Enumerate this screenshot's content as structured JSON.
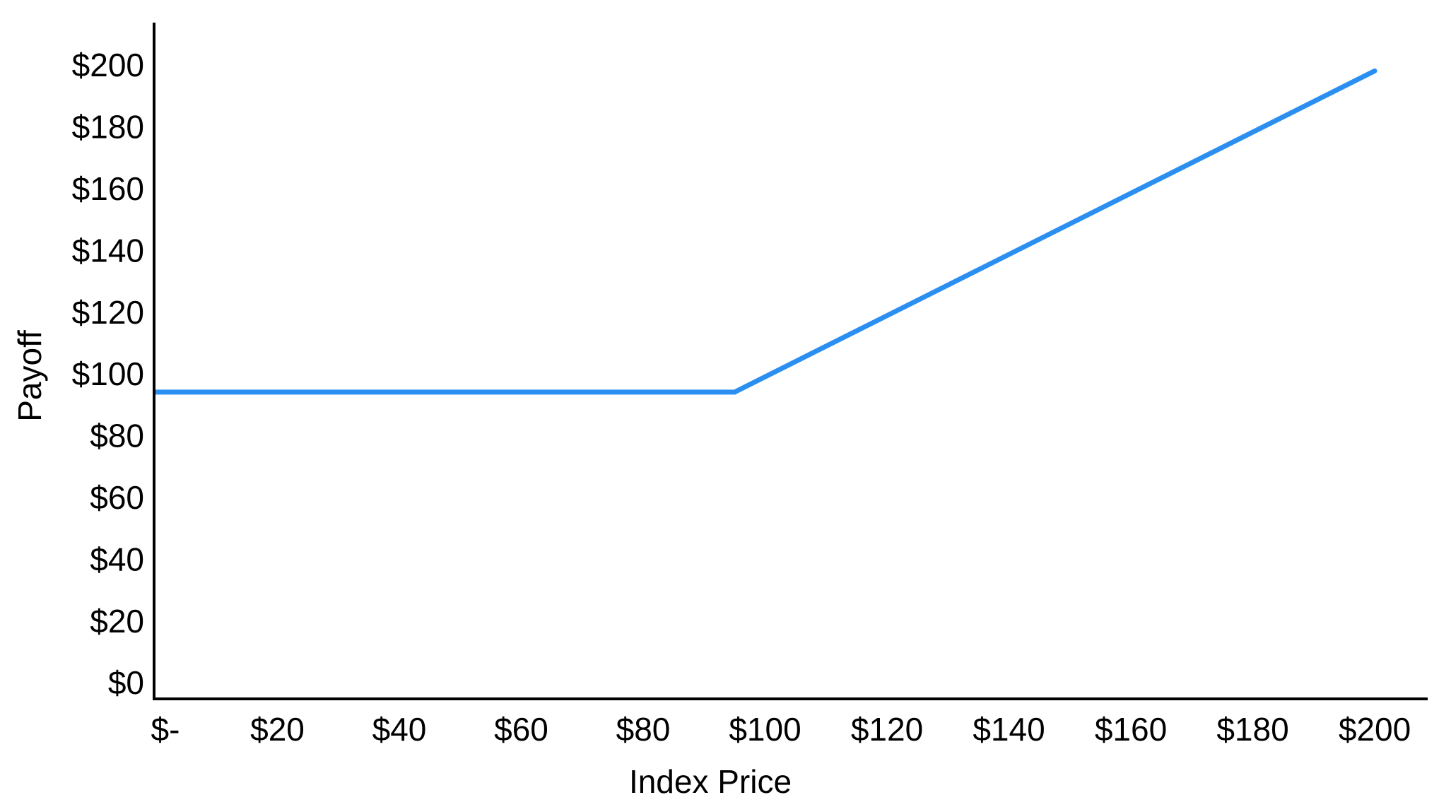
{
  "chart_data": {
    "type": "line",
    "title": "",
    "xlabel": "Index Price",
    "ylabel": "Payoff",
    "xlim": [
      0,
      210
    ],
    "ylim": [
      0,
      210
    ],
    "grid": false,
    "legend": "none",
    "x_ticks": [
      {
        "value": 0,
        "label": "$-"
      },
      {
        "value": 20,
        "label": "$20"
      },
      {
        "value": 40,
        "label": "$40"
      },
      {
        "value": 60,
        "label": "$60"
      },
      {
        "value": 80,
        "label": "$80"
      },
      {
        "value": 100,
        "label": "$100"
      },
      {
        "value": 120,
        "label": "$120"
      },
      {
        "value": 140,
        "label": "$140"
      },
      {
        "value": 160,
        "label": "$160"
      },
      {
        "value": 180,
        "label": "$180"
      },
      {
        "value": 200,
        "label": "$200"
      }
    ],
    "y_ticks": [
      {
        "value": 0,
        "label": "$0"
      },
      {
        "value": 20,
        "label": "$20"
      },
      {
        "value": 40,
        "label": "$40"
      },
      {
        "value": 60,
        "label": "$60"
      },
      {
        "value": 80,
        "label": "$80"
      },
      {
        "value": 100,
        "label": "$100"
      },
      {
        "value": 120,
        "label": "$120"
      },
      {
        "value": 140,
        "label": "$140"
      },
      {
        "value": 160,
        "label": "$160"
      },
      {
        "value": 180,
        "label": "$180"
      },
      {
        "value": 200,
        "label": "$200"
      }
    ],
    "series": [
      {
        "name": "Payoff",
        "color": "#2b8ff2",
        "points": [
          {
            "x": 0,
            "y": 95
          },
          {
            "x": 95,
            "y": 95
          },
          {
            "x": 200,
            "y": 199
          }
        ]
      }
    ]
  }
}
